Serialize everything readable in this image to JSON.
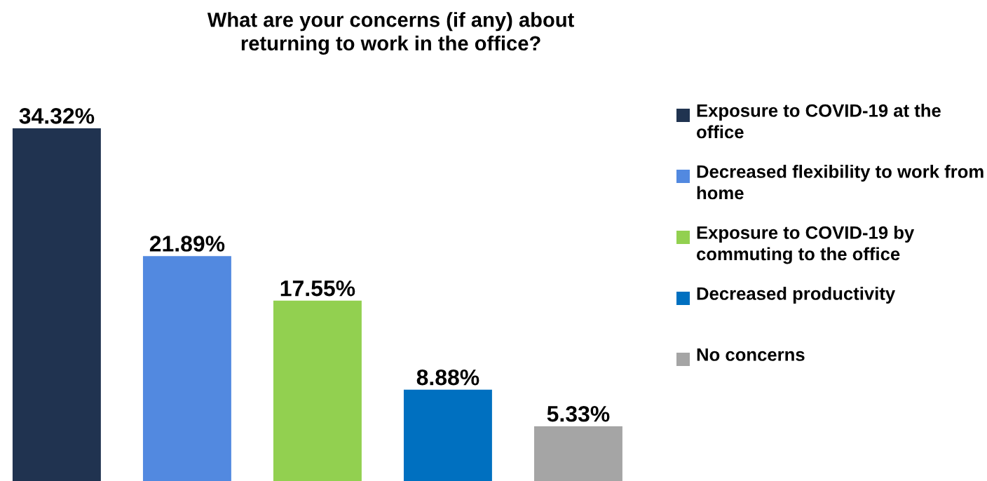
{
  "chart_data": {
    "type": "bar",
    "title": "What are your concerns (if any) about\nreturning to work in the office?",
    "categories": [
      null,
      null,
      null,
      null,
      null
    ],
    "series": [
      {
        "name": "Exposure to COVID-19 at the office",
        "color": "#203350",
        "values": [
          34.32,
          null,
          null,
          null,
          null
        ],
        "value_labels": [
          "34.32%",
          null,
          null,
          null,
          null
        ]
      },
      {
        "name": "Decreased flexibility to work from home",
        "color": "#5289e0",
        "values": [
          null,
          21.89,
          null,
          null,
          null
        ],
        "value_labels": [
          null,
          "21.89%",
          null,
          null,
          null
        ]
      },
      {
        "name": "Exposure to COVID-19 by commuting to the office",
        "color": "#92d050",
        "values": [
          null,
          null,
          17.55,
          null,
          null
        ],
        "value_labels": [
          null,
          null,
          "17.55%",
          null,
          null
        ]
      },
      {
        "name": "Decreased productivity",
        "color": "#0070c0",
        "values": [
          null,
          null,
          null,
          8.88,
          null
        ],
        "value_labels": [
          null,
          null,
          null,
          "8.88%",
          null
        ]
      },
      {
        "name": "No concerns",
        "color": "#a5a5a5",
        "values": [
          null,
          null,
          null,
          null,
          5.33
        ],
        "value_labels": [
          null,
          null,
          null,
          null,
          "5.33%"
        ]
      }
    ],
    "stacked": true,
    "legend": "right",
    "grid": false
  }
}
